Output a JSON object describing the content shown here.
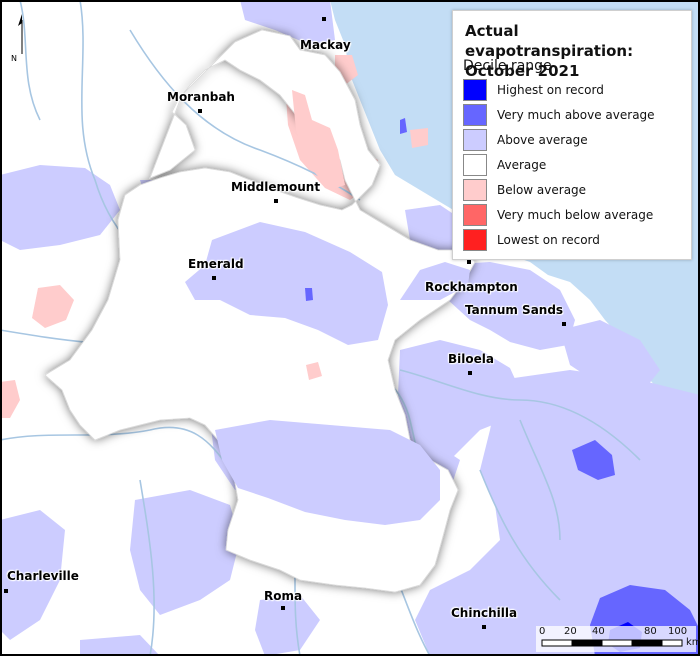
{
  "legend": {
    "title_line1": "Actual evapotranspiration:",
    "title_line2": "October 2021",
    "subtitle": "Decile range",
    "items": [
      {
        "label": "Highest on record",
        "color": "#0000ff"
      },
      {
        "label": "Very much above average",
        "color": "#6666ff"
      },
      {
        "label": "Above average",
        "color": "#ccccff"
      },
      {
        "label": "Average",
        "color": "#ffffff"
      },
      {
        "label": "Below average",
        "color": "#ffcccc"
      },
      {
        "label": "Very much below average",
        "color": "#ff6666"
      },
      {
        "label": "Lowest on record",
        "color": "#ff2020"
      }
    ]
  },
  "towns": {
    "mackay": "Mackay",
    "moranbah": "Moranbah",
    "middlemount": "Middlemount",
    "emerald": "Emerald",
    "rockhampton": "Rockhampton",
    "tannum_sands": "Tannum Sands",
    "biloela": "Biloela",
    "charleville": "Charleville",
    "roma": "Roma",
    "chinchilla": "Chinchilla"
  },
  "north_arrow": {
    "label": "N"
  },
  "scale_bar": {
    "ticks": [
      "0",
      "20",
      "40",
      "80",
      "100"
    ],
    "unit": "km"
  },
  "colors": {
    "ocean": "#c3ddf5",
    "river": "#a7c6e2",
    "border": "#000000"
  }
}
